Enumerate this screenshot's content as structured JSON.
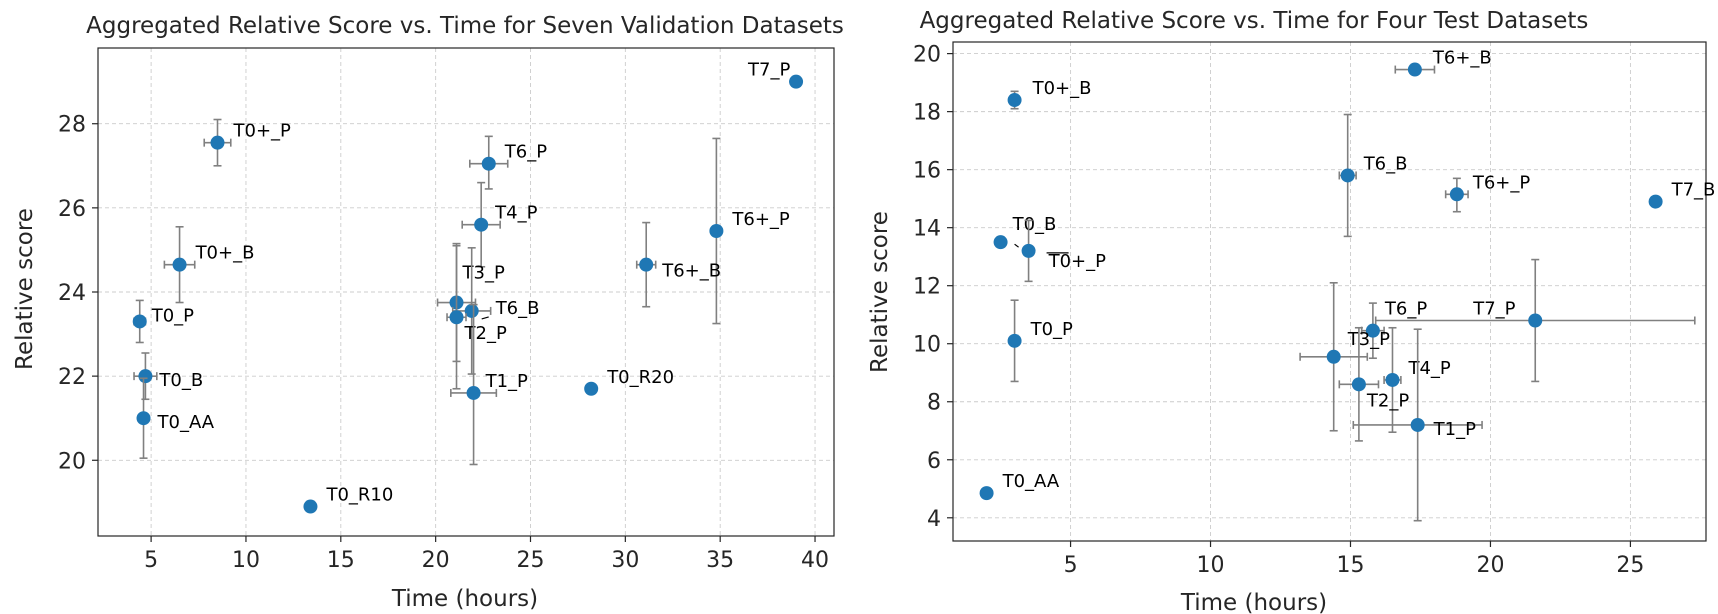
{
  "chart_data": [
    {
      "type": "scatter",
      "title": "Aggregated Relative Score vs. Time for Seven Validation Datasets",
      "xlabel": "Time (hours)",
      "ylabel": "Relative score",
      "xlim": [
        2.2,
        41
      ],
      "ylim": [
        18.2,
        29.8
      ],
      "xticks": [
        5,
        10,
        15,
        20,
        25,
        30,
        35,
        40
      ],
      "yticks": [
        20,
        22,
        24,
        26,
        28
      ],
      "grid": true,
      "marker_color": "#1f77b4",
      "errorbar_color": "#808080",
      "points": [
        {
          "label": "T7_P",
          "x": 39.0,
          "y": 29.0
        },
        {
          "label": "T0+_P",
          "x": 8.5,
          "y": 27.55,
          "xerr": [
            0.7,
            0.7
          ],
          "yerr": [
            0.55,
            0.55
          ]
        },
        {
          "label": "T6_P",
          "x": 22.8,
          "y": 27.05,
          "xerr": [
            1.0,
            1.0
          ],
          "yerr": [
            0.6,
            0.65
          ]
        },
        {
          "label": "T4_P",
          "x": 22.4,
          "y": 25.6,
          "xerr": [
            1.0,
            1.0
          ],
          "yerr": [
            1.0,
            1.0
          ]
        },
        {
          "label": "T6+_P",
          "x": 34.8,
          "y": 25.45,
          "yerr": [
            2.2,
            2.2
          ]
        },
        {
          "label": "T0+_B",
          "x": 6.5,
          "y": 24.65,
          "xerr": [
            0.8,
            0.8
          ],
          "yerr": [
            0.9,
            0.9
          ]
        },
        {
          "label": "T6+_B",
          "x": 31.1,
          "y": 24.65,
          "xerr": [
            0.5,
            0.5
          ],
          "yerr": [
            1.0,
            1.0
          ]
        },
        {
          "label": "T3_P",
          "x": 21.1,
          "y": 23.75,
          "xerr": [
            1.0,
            1.0
          ],
          "yerr": [
            1.4,
            1.4
          ]
        },
        {
          "label": "T6_B",
          "x": 21.9,
          "y": 23.55,
          "xerr": [
            1.0,
            1.0
          ],
          "yerr": [
            1.5,
            1.5
          ]
        },
        {
          "label": "T2_P",
          "x": 21.1,
          "y": 23.4,
          "xerr": [
            0.5,
            0.5
          ],
          "yerr": [
            1.7,
            1.7
          ]
        },
        {
          "label": "T0_P",
          "x": 4.4,
          "y": 23.3,
          "xerr": [
            0.3,
            0.3
          ],
          "yerr": [
            0.5,
            0.5
          ]
        },
        {
          "label": "T0_B",
          "x": 4.7,
          "y": 22.0,
          "xerr": [
            0.6,
            0.6
          ],
          "yerr": [
            0.55,
            0.55
          ]
        },
        {
          "label": "T1_P",
          "x": 22.0,
          "y": 21.6,
          "xerr": [
            1.2,
            1.2
          ],
          "yerr": [
            1.7,
            2.1
          ]
        },
        {
          "label": "T0_R20",
          "x": 28.2,
          "y": 21.7
        },
        {
          "label": "T0_AA",
          "x": 4.6,
          "y": 21.0,
          "yerr": [
            0.95,
            0.95
          ]
        },
        {
          "label": "T0_R10",
          "x": 13.4,
          "y": 18.9
        }
      ]
    },
    {
      "type": "scatter",
      "title": "Aggregated Relative Score vs. Time for Four Test Datasets",
      "xlabel": "Time (hours)",
      "ylabel": "Relative score",
      "xlim": [
        0.8,
        27.7
      ],
      "ylim": [
        3.2,
        20.4
      ],
      "xticks": [
        5,
        10,
        15,
        20,
        25
      ],
      "yticks": [
        4,
        6,
        8,
        10,
        12,
        14,
        16,
        18,
        20
      ],
      "grid": true,
      "marker_color": "#1f77b4",
      "errorbar_color": "#808080",
      "points": [
        {
          "label": "T6+_B",
          "x": 17.3,
          "y": 19.45,
          "xerr": [
            0.7,
            0.7
          ]
        },
        {
          "label": "T0+_B",
          "x": 3.0,
          "y": 18.4,
          "yerr": [
            0.3,
            0.3
          ]
        },
        {
          "label": "T6_B",
          "x": 14.9,
          "y": 15.8,
          "xerr": [
            0.3,
            0.3
          ],
          "yerr": [
            2.1,
            2.1
          ]
        },
        {
          "label": "T6+_P",
          "x": 18.8,
          "y": 15.15,
          "xerr": [
            0.4,
            0.4
          ],
          "yerr": [
            0.6,
            0.55
          ]
        },
        {
          "label": "T7_B",
          "x": 25.9,
          "y": 14.9
        },
        {
          "label": "T0_B",
          "x": 2.5,
          "y": 13.5
        },
        {
          "label": "T0+_P",
          "x": 3.5,
          "y": 13.2,
          "yerr": [
            1.05,
            1.05
          ]
        },
        {
          "label": "T7_P",
          "x": 21.6,
          "y": 10.8,
          "xerr": [
            5.7,
            5.7
          ],
          "yerr": [
            2.1,
            2.1
          ]
        },
        {
          "label": "T6_P",
          "x": 15.8,
          "y": 10.45,
          "xerr": [
            0.4,
            0.4
          ],
          "yerr": [
            0.95,
            0.95
          ]
        },
        {
          "label": "T0_P",
          "x": 3.0,
          "y": 10.1,
          "yerr": [
            1.4,
            1.4
          ]
        },
        {
          "label": "T3_P",
          "x": 14.4,
          "y": 9.55,
          "xerr": [
            1.2,
            1.2
          ],
          "yerr": [
            2.55,
            2.55
          ]
        },
        {
          "label": "T4_P",
          "x": 16.5,
          "y": 8.75,
          "xerr": [
            0.3,
            0.3
          ],
          "yerr": [
            1.8,
            1.8
          ]
        },
        {
          "label": "T2_P",
          "x": 15.3,
          "y": 8.6,
          "xerr": [
            0.7,
            0.7
          ],
          "yerr": [
            1.95,
            1.95
          ]
        },
        {
          "label": "T1_P",
          "x": 17.4,
          "y": 7.2,
          "xerr": [
            2.3,
            2.3
          ],
          "yerr": [
            3.3,
            3.3
          ]
        },
        {
          "label": "T0_AA",
          "x": 2.0,
          "y": 4.85
        }
      ]
    }
  ]
}
